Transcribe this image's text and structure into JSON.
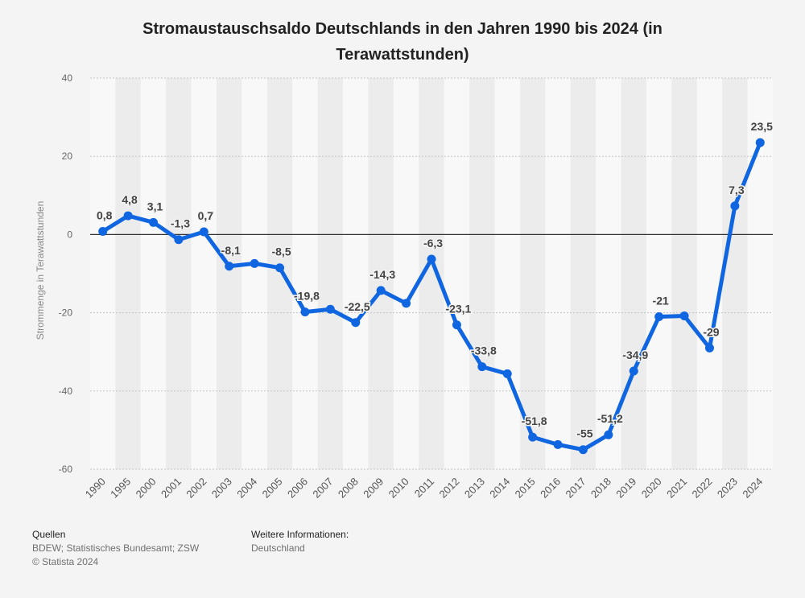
{
  "chart_data": {
    "type": "line",
    "title": "Stromaustauschsaldo Deutschlands in den Jahren 1990 bis 2024 (in Terawattstunden)",
    "xlabel": "",
    "ylabel": "Strommenge in Terawattstunden",
    "ylim": [
      -60,
      40
    ],
    "yticks": [
      -60,
      -40,
      -20,
      0,
      20,
      40
    ],
    "categories": [
      "1990",
      "1995",
      "2000",
      "2001",
      "2002",
      "2003",
      "2004",
      "2005",
      "2006",
      "2007",
      "2008",
      "2009",
      "2010",
      "2011",
      "2012",
      "2013",
      "2014",
      "2015",
      "2016",
      "2017",
      "2018",
      "2019",
      "2020",
      "2021",
      "2022",
      "2023",
      "2024"
    ],
    "series": [
      {
        "name": "Stromaustauschsaldo",
        "color": "#1066e0",
        "values": [
          0.8,
          4.8,
          3.1,
          -1.3,
          0.7,
          -8.1,
          -7.4,
          -8.5,
          -19.8,
          -19.1,
          -22.5,
          -14.3,
          -17.6,
          -6.3,
          -23.1,
          -33.8,
          -35.6,
          -51.8,
          -53.7,
          -55.0,
          -51.2,
          -34.9,
          -21.0,
          -20.8,
          -29.0,
          7.3,
          23.5
        ],
        "labels": [
          "0,8",
          "4,8",
          "3,1",
          "-1,3",
          "0,7",
          "-8,1",
          "",
          "-8,5",
          "-19,8",
          "",
          "-22,5",
          "-14,3",
          "",
          "-6,3",
          "-23,1",
          "-33,8",
          "",
          "-51,8",
          "",
          "-55",
          "-51,2",
          "-34,9",
          "-21",
          "",
          "-29",
          "7,3",
          "23,5"
        ]
      }
    ]
  },
  "footer": {
    "sources_heading": "Quellen",
    "sources_text": "BDEW; Statistisches Bundesamt; ZSW",
    "copyright": "© Statista 2024",
    "more_info_heading": "Weitere Informationen:",
    "more_info_text": "Deutschland"
  }
}
